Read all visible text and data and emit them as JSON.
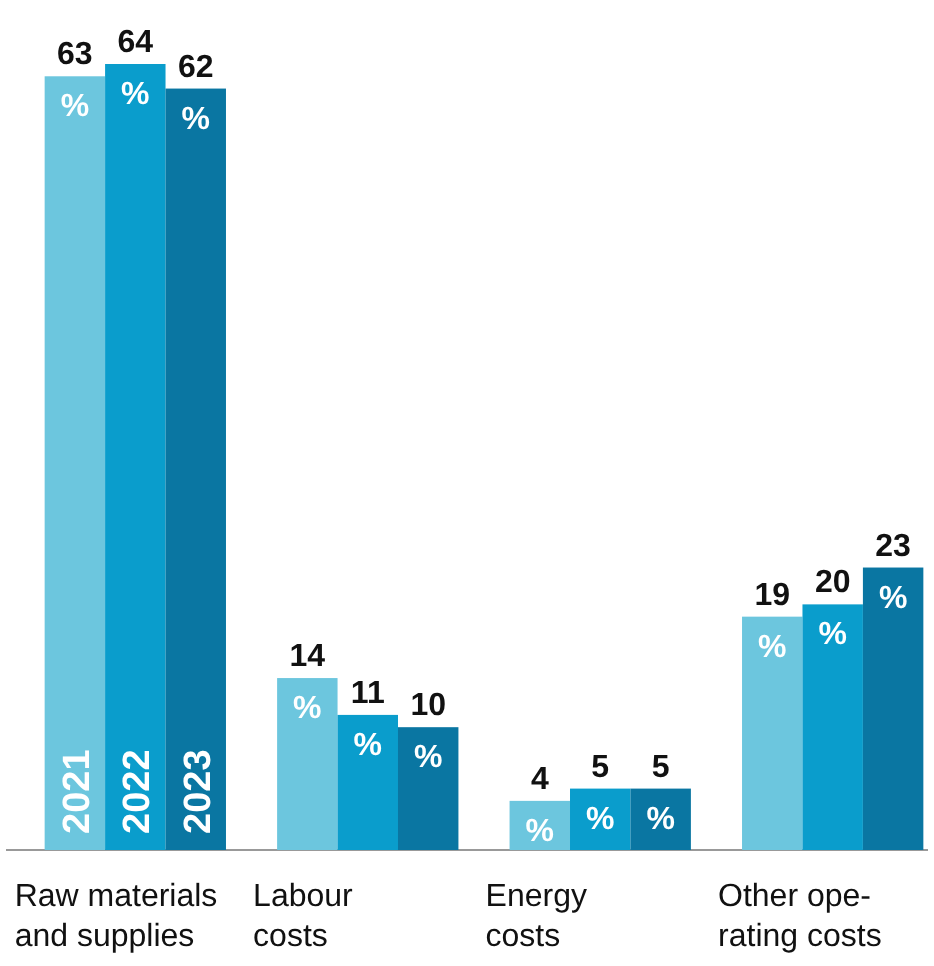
{
  "chart_data": {
    "type": "bar",
    "categories": [
      "Raw materials\nand supplies",
      "Labour\ncosts",
      "Energy\ncosts",
      "Other ope-\nrating costs"
    ],
    "legend": false,
    "series": [
      {
        "name": "2021",
        "color": "#6cc6de",
        "values": [
          63,
          14,
          4,
          19
        ],
        "value_labels": [
          "63 %",
          "14 %",
          "4 %",
          "19 %"
        ]
      },
      {
        "name": "2022",
        "color": "#0a9dcc",
        "values": [
          64,
          11,
          5,
          20
        ],
        "value_labels": [
          "64 %",
          "11 %",
          "5 %",
          "20 %"
        ]
      },
      {
        "name": "2023",
        "color": "#0a76a2",
        "values": [
          62,
          10,
          5,
          23
        ],
        "value_labels": [
          "62 %",
          "10 %",
          "5 %",
          "23 %"
        ]
      }
    ]
  }
}
